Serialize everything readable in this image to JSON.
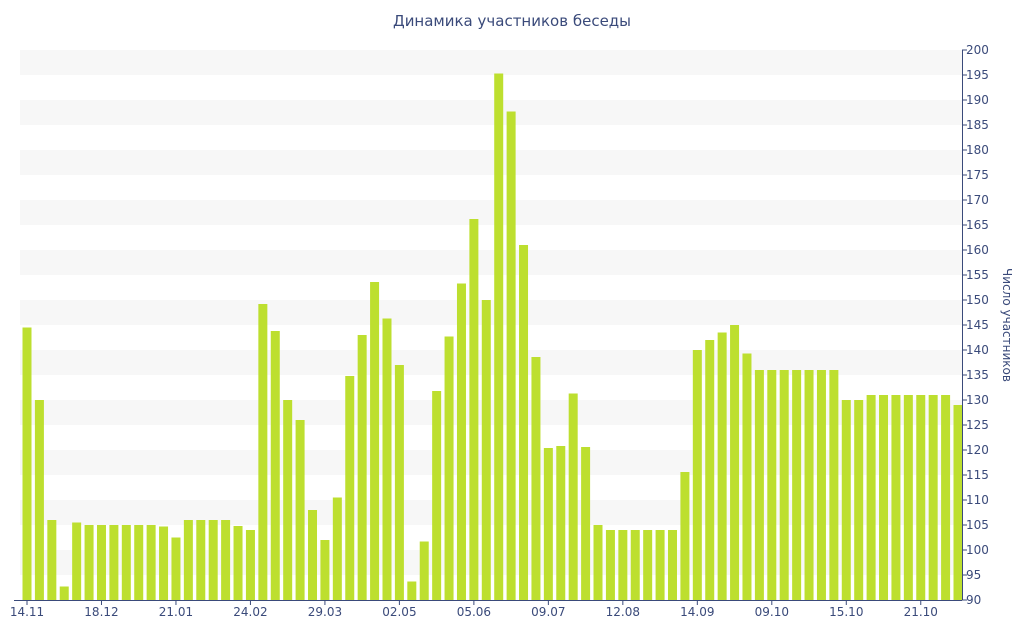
{
  "chart_data": {
    "type": "bar",
    "title": "Динамика участников беседы",
    "xlabel": "",
    "ylabel": "Число участников",
    "ylim": [
      90,
      200
    ],
    "ytick_step": 5,
    "y_axis_side": "right",
    "grid": "alternating horizontal bands",
    "bar_color": "#bddf2f",
    "band_color": "#f7f7f7",
    "text_color": "#3a4a7a",
    "x_tick_labels": [
      {
        "index": 0,
        "label": "14.11"
      },
      {
        "index": 6,
        "label": "18.12"
      },
      {
        "index": 12,
        "label": "21.01"
      },
      {
        "index": 18,
        "label": "24.02"
      },
      {
        "index": 24,
        "label": "29.03"
      },
      {
        "index": 30,
        "label": "02.05"
      },
      {
        "index": 36,
        "label": "05.06"
      },
      {
        "index": 42,
        "label": "09.07"
      },
      {
        "index": 48,
        "label": "12.08"
      },
      {
        "index": 54,
        "label": "14.09"
      },
      {
        "index": 60,
        "label": "09.10"
      },
      {
        "index": 66,
        "label": "15.10"
      },
      {
        "index": 72,
        "label": "21.10"
      }
    ],
    "values": [
      144.5,
      130,
      106,
      92.7,
      105.5,
      105,
      105,
      105,
      105,
      105,
      105,
      104.7,
      102.5,
      106,
      106,
      106,
      106,
      104.8,
      104,
      149.2,
      143.8,
      130,
      126,
      108,
      102,
      110.5,
      134.8,
      143,
      153.6,
      146.3,
      137,
      93.7,
      101.7,
      131.8,
      142.7,
      153.3,
      166.2,
      150,
      195.3,
      187.7,
      161,
      138.6,
      120.4,
      120.8,
      131.3,
      120.6,
      105,
      104,
      104,
      104,
      104,
      104,
      104,
      115.6,
      140,
      142,
      143.5,
      145,
      139.3,
      136,
      136,
      136,
      136,
      136,
      136,
      136,
      130,
      130,
      131,
      131,
      131,
      131,
      131,
      131,
      131,
      129
    ]
  }
}
